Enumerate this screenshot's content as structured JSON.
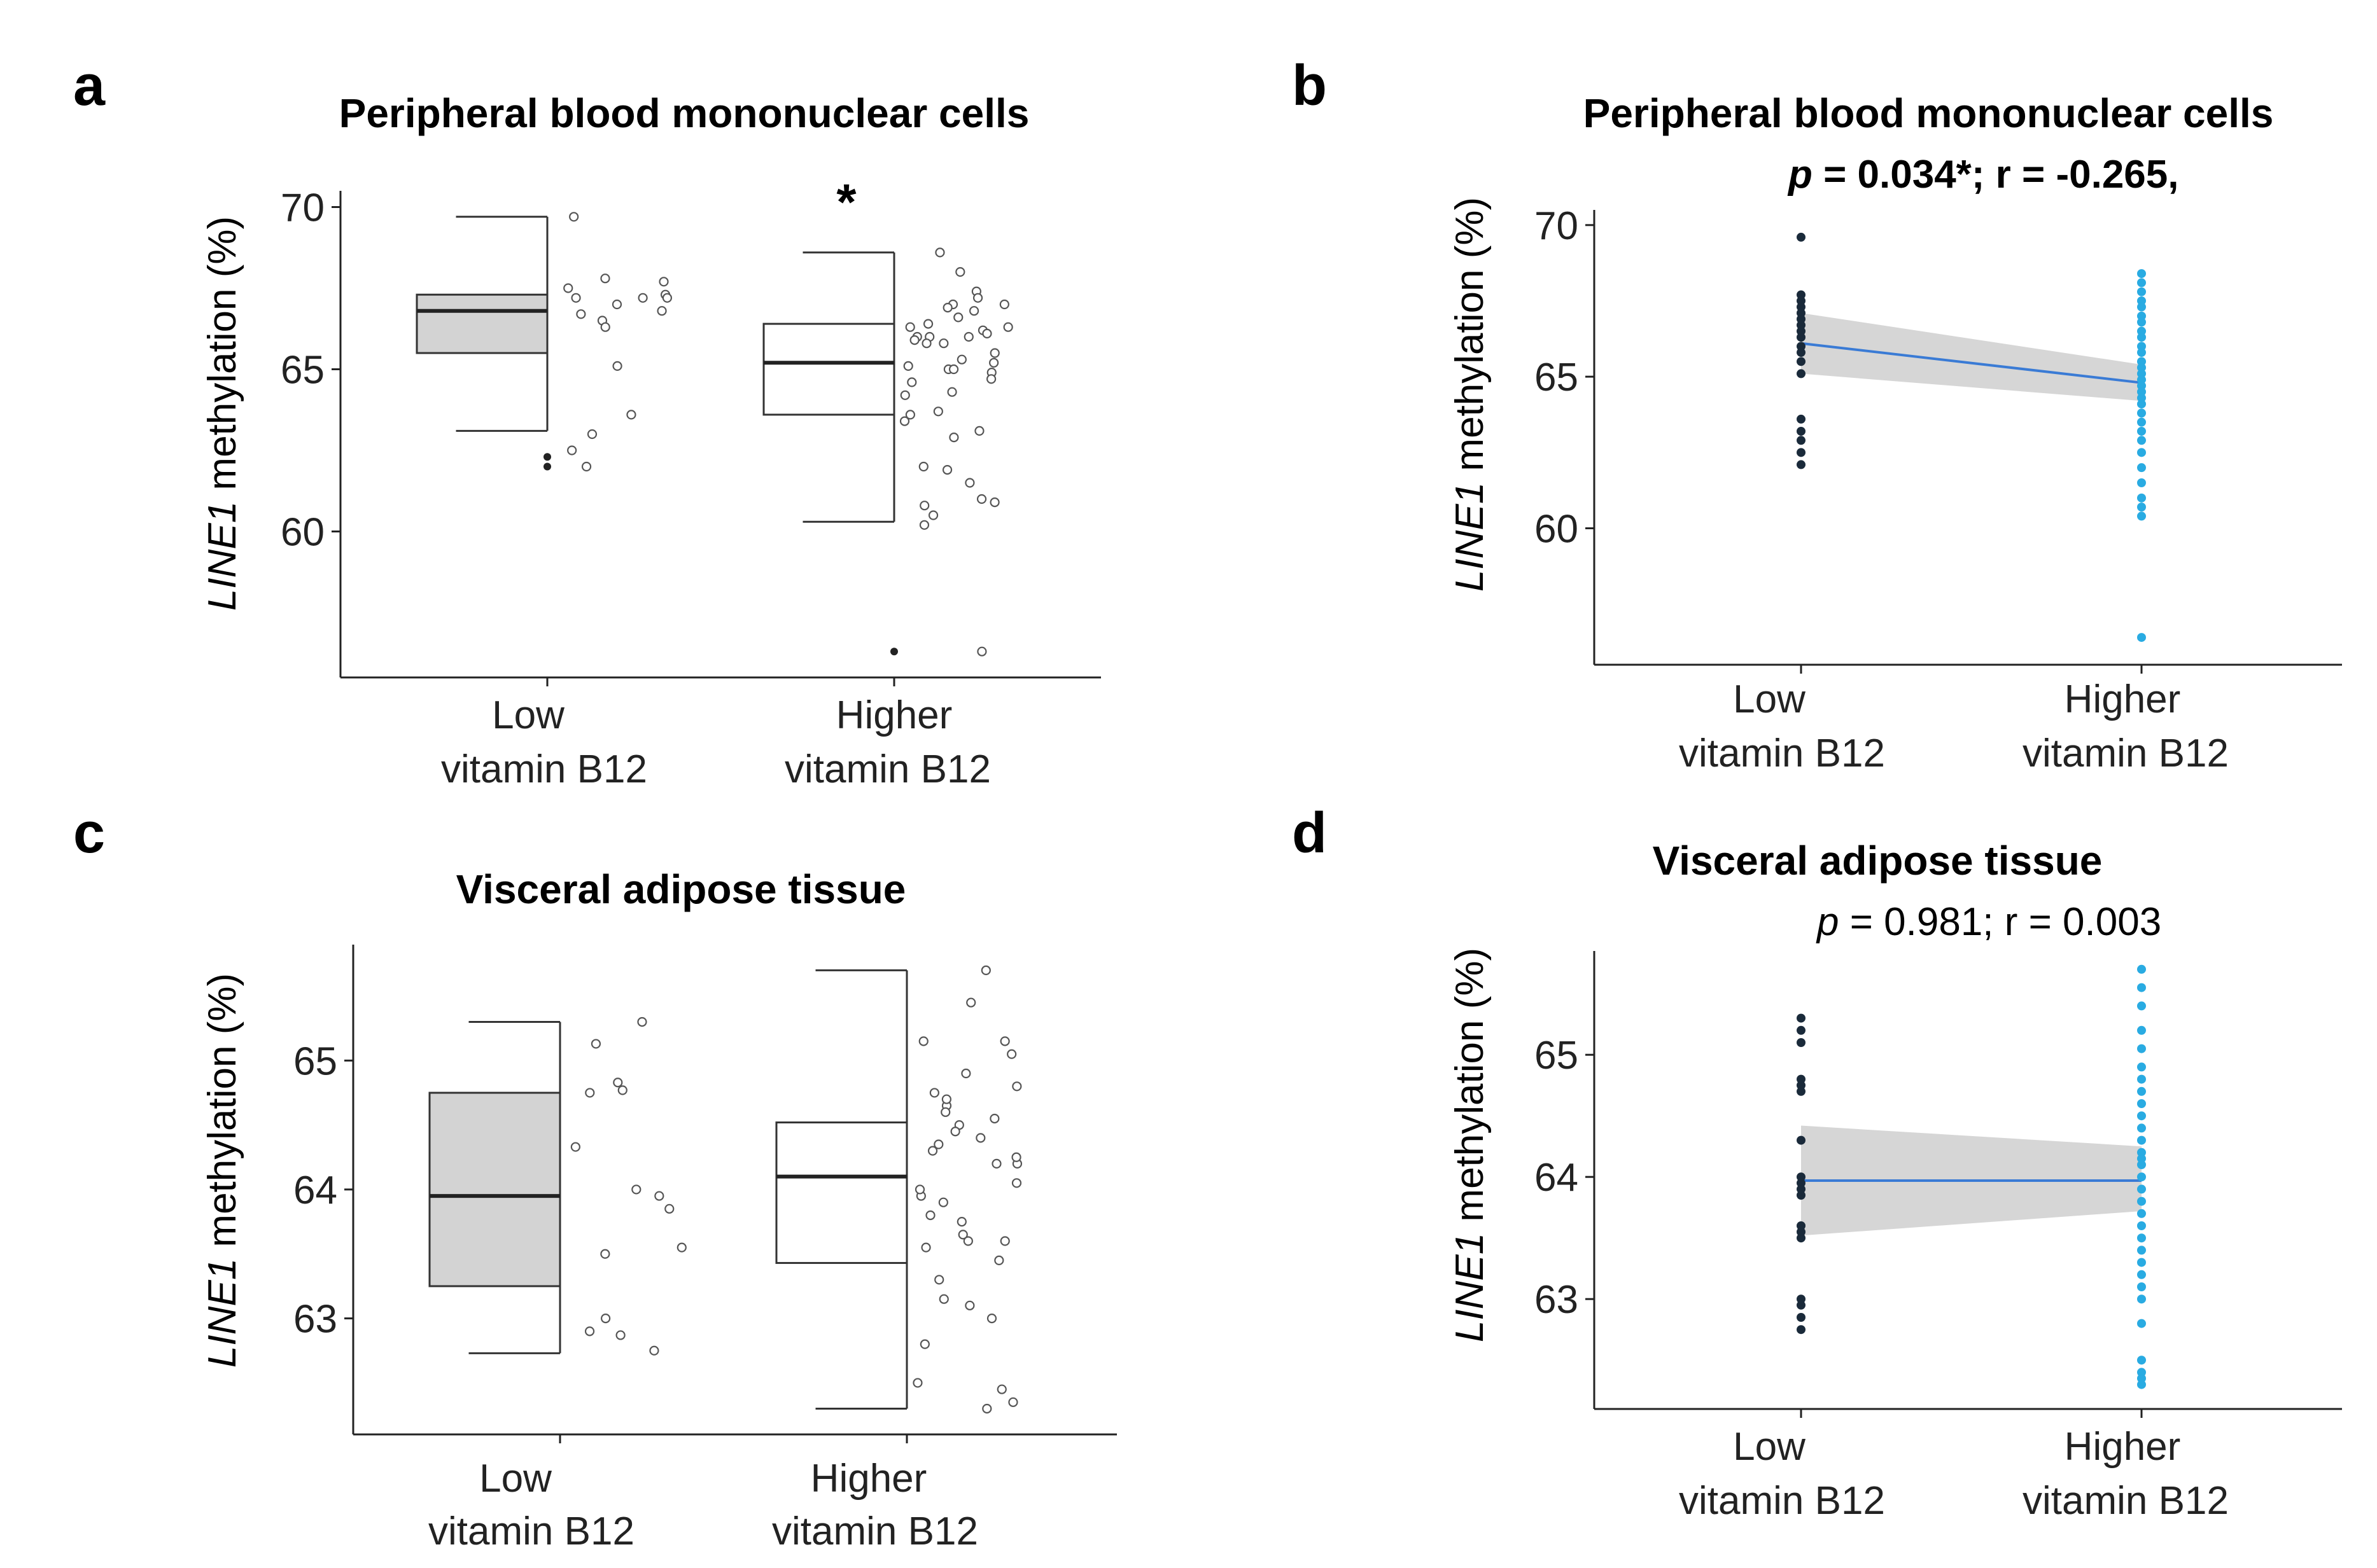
{
  "chart_data": [
    {
      "panel": "a",
      "type": "boxplot",
      "title": "Peripheral blood mononuclear cells",
      "ylabel_italic": "LINE1",
      "ylabel_rest": " methylation (%)",
      "yticks": [
        60,
        65,
        70
      ],
      "ylim": [
        55.5,
        70.5
      ],
      "categories": [
        [
          "Low",
          "vitamin B12"
        ],
        [
          "Higher",
          "vitamin B12"
        ]
      ],
      "significance": "*",
      "groups": [
        {
          "name": "Low vitamin B12",
          "fill": "#d3d3d3",
          "q1": 65.5,
          "median": 66.8,
          "q3": 67.3,
          "whisker_low": 63.1,
          "whisker_high": 69.7,
          "outliers": [
            62.0,
            62.3
          ],
          "points": [
            66.8,
            67.3,
            67.5,
            67.8,
            67.7,
            67.2,
            66.5,
            65.1,
            63.6,
            62.0,
            69.7,
            67.2,
            66.3,
            66.7,
            67.0,
            63.0,
            62.5,
            67.2
          ]
        },
        {
          "name": "Higher vitamin B12",
          "fill": "#ffffff",
          "q1": 63.6,
          "median": 65.2,
          "q3": 66.4,
          "whisker_low": 60.3,
          "whisker_high": 68.6,
          "outliers": [
            56.3
          ],
          "points": [
            66.0,
            65.2,
            66.2,
            66.3,
            66.0,
            65.9,
            66.1,
            66.4,
            68.0,
            67.4,
            65.8,
            65.0,
            62.0,
            61.5,
            60.8,
            61.0,
            60.9,
            60.5,
            63.1,
            63.7,
            64.6,
            65.3,
            65.0,
            64.2,
            66.8,
            67.2,
            66.6,
            67.0,
            66.9,
            66.3,
            65.8,
            65.1,
            64.9,
            64.7,
            63.4,
            62.9,
            60.2,
            56.3,
            68.6,
            67.0,
            66.0,
            65.5,
            64.3,
            63.6,
            61.9
          ]
        }
      ]
    },
    {
      "panel": "b",
      "type": "scatter",
      "title": "Peripheral blood mononuclear cells",
      "stat_p_label": "p",
      "stat_text": " = 0.034*; r = -0.265,",
      "ylabel_italic": "LINE1",
      "ylabel_rest": " methylation (%)",
      "yticks": [
        60,
        65,
        70
      ],
      "ylim": [
        55.5,
        70.5
      ],
      "categories": [
        [
          "Low",
          "vitamin B12"
        ],
        [
          "Higher",
          "vitamin B12"
        ]
      ],
      "regression": {
        "y_start": 66.1,
        "y_end": 64.8,
        "ci_start": [
          65.1,
          67.1
        ],
        "ci_end": [
          64.2,
          65.4
        ]
      },
      "series": [
        {
          "name": "Low vitamin B12",
          "color": "#1a2a3a",
          "values": [
            69.6,
            67.7,
            67.5,
            67.3,
            67.1,
            66.9,
            66.7,
            66.5,
            66.3,
            66.0,
            65.8,
            65.5,
            65.1,
            63.6,
            63.2,
            62.9,
            62.5,
            62.1
          ]
        },
        {
          "name": "Higher vitamin B12",
          "color": "#29abe2",
          "values": [
            68.4,
            68.1,
            67.8,
            67.5,
            67.3,
            67.0,
            66.8,
            66.5,
            66.3,
            66.0,
            65.8,
            65.5,
            65.3,
            65.1,
            64.9,
            64.7,
            64.5,
            64.3,
            64.1,
            63.8,
            63.5,
            63.2,
            62.9,
            62.5,
            62.0,
            61.5,
            61.0,
            60.7,
            60.4,
            56.4
          ]
        }
      ]
    },
    {
      "panel": "c",
      "type": "boxplot",
      "title": "Visceral adipose tissue",
      "ylabel_italic": "LINE1",
      "ylabel_rest": " methylation (%)",
      "yticks": [
        63,
        64,
        65
      ],
      "ylim": [
        62.1,
        65.85
      ],
      "categories": [
        [
          "Low",
          "vitamin B12"
        ],
        [
          "Higher",
          "vitamin B12"
        ]
      ],
      "groups": [
        {
          "name": "Low vitamin B12",
          "fill": "#d3d3d3",
          "q1": 63.25,
          "median": 63.95,
          "q3": 64.75,
          "whisker_low": 62.73,
          "whisker_high": 65.3,
          "outliers": [],
          "points": [
            64.77,
            65.3,
            65.13,
            64.83,
            64.75,
            64.33,
            63.95,
            64.0,
            63.85,
            63.55,
            63.5,
            62.9,
            62.87,
            62.75,
            63.0
          ]
        },
        {
          "name": "Higher vitamin B12",
          "fill": "#ffffff",
          "q1": 63.43,
          "median": 64.1,
          "q3": 64.52,
          "whisker_low": 62.3,
          "whisker_high": 65.7,
          "outliers": [],
          "points": [
            65.7,
            65.45,
            65.15,
            65.15,
            64.9,
            64.8,
            64.75,
            64.65,
            64.55,
            64.5,
            64.45,
            64.4,
            64.35,
            64.3,
            64.2,
            64.05,
            63.95,
            63.9,
            63.8,
            63.65,
            63.6,
            63.55,
            63.45,
            63.3,
            63.15,
            63.1,
            63.0,
            62.8,
            62.5,
            62.45,
            62.35,
            62.3,
            65.05,
            64.6,
            64.25,
            63.75,
            63.6,
            64.7,
            64.2,
            64.0
          ]
        }
      ]
    },
    {
      "panel": "d",
      "type": "scatter",
      "title": "Visceral adipose tissue",
      "stat_p_label": "p",
      "stat_text": " = 0.981; r = 0.003",
      "ylabel_italic": "LINE1",
      "ylabel_rest": " methylation (%)",
      "yticks": [
        63,
        64,
        65
      ],
      "ylim": [
        62.1,
        65.85
      ],
      "categories": [
        [
          "Low",
          "vitamin B12"
        ],
        [
          "Higher",
          "vitamin B12"
        ]
      ],
      "regression": {
        "y_start": 63.97,
        "y_end": 63.97,
        "ci_start": [
          63.52,
          64.42
        ],
        "ci_end": [
          63.72,
          64.25
        ]
      },
      "series": [
        {
          "name": "Low vitamin B12",
          "color": "#1a2a3a",
          "values": [
            65.3,
            65.2,
            65.1,
            64.8,
            64.75,
            64.7,
            64.3,
            64.0,
            63.95,
            63.9,
            63.85,
            63.6,
            63.55,
            63.5,
            63.0,
            62.95,
            62.85,
            62.75
          ]
        },
        {
          "name": "Higher vitamin B12",
          "color": "#29abe2",
          "values": [
            65.7,
            65.55,
            65.4,
            65.2,
            65.05,
            64.9,
            64.8,
            64.7,
            64.6,
            64.5,
            64.4,
            64.3,
            64.2,
            64.15,
            64.1,
            64.0,
            63.9,
            63.8,
            63.7,
            63.6,
            63.5,
            63.4,
            63.3,
            63.2,
            63.1,
            63.0,
            62.8,
            62.5,
            62.4,
            62.35,
            62.3
          ]
        }
      ]
    }
  ]
}
